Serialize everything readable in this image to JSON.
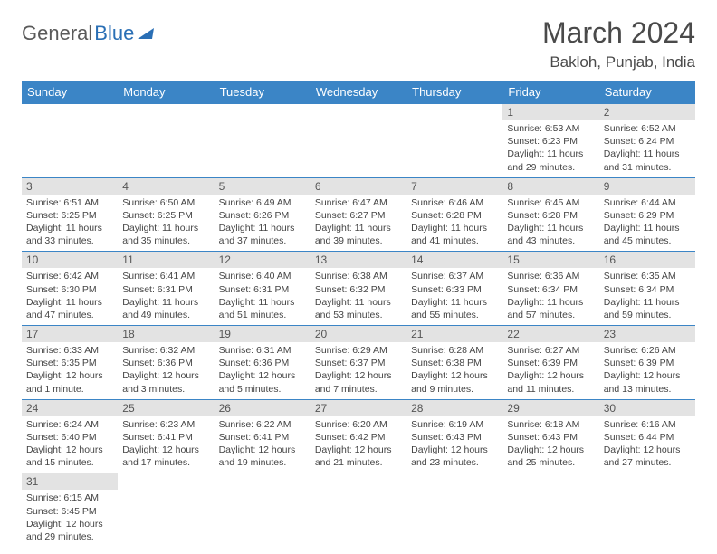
{
  "logo": {
    "part1": "General",
    "part2": "Blue"
  },
  "title": "March 2024",
  "subtitle": "Bakloh, Punjab, India",
  "colors": {
    "header_bg": "#3b85c6",
    "header_text": "#ffffff",
    "daynum_bg": "#e3e3e3",
    "cell_border": "#3b85c6",
    "logo_blue": "#2a6fb5",
    "logo_gray": "#5a5a5a"
  },
  "weekdays": [
    "Sunday",
    "Monday",
    "Tuesday",
    "Wednesday",
    "Thursday",
    "Friday",
    "Saturday"
  ],
  "weeks": [
    [
      null,
      null,
      null,
      null,
      null,
      {
        "n": "1",
        "sr": "Sunrise: 6:53 AM",
        "ss": "Sunset: 6:23 PM",
        "d1": "Daylight: 11 hours",
        "d2": "and 29 minutes."
      },
      {
        "n": "2",
        "sr": "Sunrise: 6:52 AM",
        "ss": "Sunset: 6:24 PM",
        "d1": "Daylight: 11 hours",
        "d2": "and 31 minutes."
      }
    ],
    [
      {
        "n": "3",
        "sr": "Sunrise: 6:51 AM",
        "ss": "Sunset: 6:25 PM",
        "d1": "Daylight: 11 hours",
        "d2": "and 33 minutes."
      },
      {
        "n": "4",
        "sr": "Sunrise: 6:50 AM",
        "ss": "Sunset: 6:25 PM",
        "d1": "Daylight: 11 hours",
        "d2": "and 35 minutes."
      },
      {
        "n": "5",
        "sr": "Sunrise: 6:49 AM",
        "ss": "Sunset: 6:26 PM",
        "d1": "Daylight: 11 hours",
        "d2": "and 37 minutes."
      },
      {
        "n": "6",
        "sr": "Sunrise: 6:47 AM",
        "ss": "Sunset: 6:27 PM",
        "d1": "Daylight: 11 hours",
        "d2": "and 39 minutes."
      },
      {
        "n": "7",
        "sr": "Sunrise: 6:46 AM",
        "ss": "Sunset: 6:28 PM",
        "d1": "Daylight: 11 hours",
        "d2": "and 41 minutes."
      },
      {
        "n": "8",
        "sr": "Sunrise: 6:45 AM",
        "ss": "Sunset: 6:28 PM",
        "d1": "Daylight: 11 hours",
        "d2": "and 43 minutes."
      },
      {
        "n": "9",
        "sr": "Sunrise: 6:44 AM",
        "ss": "Sunset: 6:29 PM",
        "d1": "Daylight: 11 hours",
        "d2": "and 45 minutes."
      }
    ],
    [
      {
        "n": "10",
        "sr": "Sunrise: 6:42 AM",
        "ss": "Sunset: 6:30 PM",
        "d1": "Daylight: 11 hours",
        "d2": "and 47 minutes."
      },
      {
        "n": "11",
        "sr": "Sunrise: 6:41 AM",
        "ss": "Sunset: 6:31 PM",
        "d1": "Daylight: 11 hours",
        "d2": "and 49 minutes."
      },
      {
        "n": "12",
        "sr": "Sunrise: 6:40 AM",
        "ss": "Sunset: 6:31 PM",
        "d1": "Daylight: 11 hours",
        "d2": "and 51 minutes."
      },
      {
        "n": "13",
        "sr": "Sunrise: 6:38 AM",
        "ss": "Sunset: 6:32 PM",
        "d1": "Daylight: 11 hours",
        "d2": "and 53 minutes."
      },
      {
        "n": "14",
        "sr": "Sunrise: 6:37 AM",
        "ss": "Sunset: 6:33 PM",
        "d1": "Daylight: 11 hours",
        "d2": "and 55 minutes."
      },
      {
        "n": "15",
        "sr": "Sunrise: 6:36 AM",
        "ss": "Sunset: 6:34 PM",
        "d1": "Daylight: 11 hours",
        "d2": "and 57 minutes."
      },
      {
        "n": "16",
        "sr": "Sunrise: 6:35 AM",
        "ss": "Sunset: 6:34 PM",
        "d1": "Daylight: 11 hours",
        "d2": "and 59 minutes."
      }
    ],
    [
      {
        "n": "17",
        "sr": "Sunrise: 6:33 AM",
        "ss": "Sunset: 6:35 PM",
        "d1": "Daylight: 12 hours",
        "d2": "and 1 minute."
      },
      {
        "n": "18",
        "sr": "Sunrise: 6:32 AM",
        "ss": "Sunset: 6:36 PM",
        "d1": "Daylight: 12 hours",
        "d2": "and 3 minutes."
      },
      {
        "n": "19",
        "sr": "Sunrise: 6:31 AM",
        "ss": "Sunset: 6:36 PM",
        "d1": "Daylight: 12 hours",
        "d2": "and 5 minutes."
      },
      {
        "n": "20",
        "sr": "Sunrise: 6:29 AM",
        "ss": "Sunset: 6:37 PM",
        "d1": "Daylight: 12 hours",
        "d2": "and 7 minutes."
      },
      {
        "n": "21",
        "sr": "Sunrise: 6:28 AM",
        "ss": "Sunset: 6:38 PM",
        "d1": "Daylight: 12 hours",
        "d2": "and 9 minutes."
      },
      {
        "n": "22",
        "sr": "Sunrise: 6:27 AM",
        "ss": "Sunset: 6:39 PM",
        "d1": "Daylight: 12 hours",
        "d2": "and 11 minutes."
      },
      {
        "n": "23",
        "sr": "Sunrise: 6:26 AM",
        "ss": "Sunset: 6:39 PM",
        "d1": "Daylight: 12 hours",
        "d2": "and 13 minutes."
      }
    ],
    [
      {
        "n": "24",
        "sr": "Sunrise: 6:24 AM",
        "ss": "Sunset: 6:40 PM",
        "d1": "Daylight: 12 hours",
        "d2": "and 15 minutes."
      },
      {
        "n": "25",
        "sr": "Sunrise: 6:23 AM",
        "ss": "Sunset: 6:41 PM",
        "d1": "Daylight: 12 hours",
        "d2": "and 17 minutes."
      },
      {
        "n": "26",
        "sr": "Sunrise: 6:22 AM",
        "ss": "Sunset: 6:41 PM",
        "d1": "Daylight: 12 hours",
        "d2": "and 19 minutes."
      },
      {
        "n": "27",
        "sr": "Sunrise: 6:20 AM",
        "ss": "Sunset: 6:42 PM",
        "d1": "Daylight: 12 hours",
        "d2": "and 21 minutes."
      },
      {
        "n": "28",
        "sr": "Sunrise: 6:19 AM",
        "ss": "Sunset: 6:43 PM",
        "d1": "Daylight: 12 hours",
        "d2": "and 23 minutes."
      },
      {
        "n": "29",
        "sr": "Sunrise: 6:18 AM",
        "ss": "Sunset: 6:43 PM",
        "d1": "Daylight: 12 hours",
        "d2": "and 25 minutes."
      },
      {
        "n": "30",
        "sr": "Sunrise: 6:16 AM",
        "ss": "Sunset: 6:44 PM",
        "d1": "Daylight: 12 hours",
        "d2": "and 27 minutes."
      }
    ],
    [
      {
        "n": "31",
        "sr": "Sunrise: 6:15 AM",
        "ss": "Sunset: 6:45 PM",
        "d1": "Daylight: 12 hours",
        "d2": "and 29 minutes."
      },
      null,
      null,
      null,
      null,
      null,
      null
    ]
  ]
}
